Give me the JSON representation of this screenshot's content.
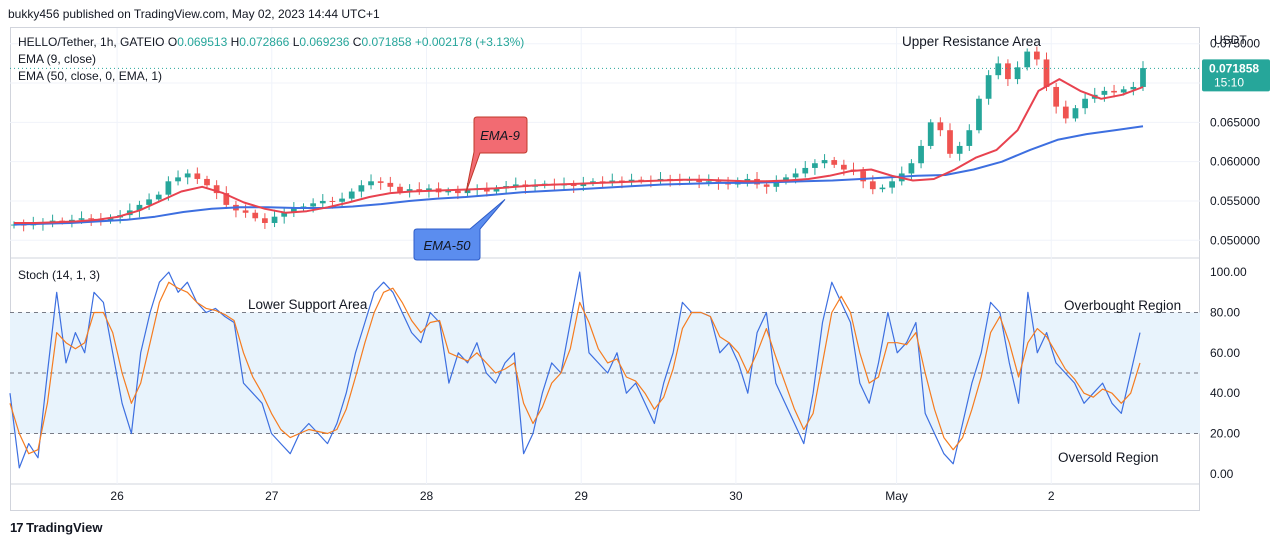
{
  "header": {
    "publisher": "bukky456 published on TradingView.com, May 02, 2023 14:44 UTC+1"
  },
  "legend": {
    "symbol": "HELLO/Tether, 1h, GATEIO",
    "o_label": "O",
    "o_value": "0.069513",
    "h_label": "H",
    "h_value": "0.072866",
    "l_label": "L",
    "l_value": "0.069236",
    "c_label": "C",
    "c_value": "0.071858",
    "change": "+0.002178 (+3.13%)",
    "ema9": "EMA (9, close)",
    "ema50": "EMA (50, close, 0, EMA, 1)",
    "stoch": "Stoch (14, 1, 3)"
  },
  "annotations": {
    "upper_resistance": "Upper Resistance Area",
    "lower_support": "Lower Support Area",
    "overbought": "Overbought Region",
    "oversold": "Oversold Region",
    "ema9_callout": "EMA-9",
    "ema50_callout": "EMA-50"
  },
  "price_axis": {
    "currency": "USDT",
    "last_price": "0.071858",
    "countdown": "15:10"
  },
  "footer": {
    "brand": "TradingView"
  },
  "colors": {
    "up": "#26a69a",
    "down": "#ef5350",
    "ema9": "#e8424f",
    "ema50": "#3d6fe0",
    "stoch_k": "#3d6fe0",
    "stoch_d": "#f57c20",
    "band_fill": "#e8f3fc"
  },
  "chart_data": [
    {
      "type": "candlestick",
      "title": "HELLO/Tether, 1h, GATEIO",
      "y_range": [
        0.048,
        0.077
      ],
      "y_ticks": [
        "0.075000",
        "0.070000",
        "0.065000",
        "0.060000",
        "0.055000",
        "0.050000"
      ],
      "y_tick_values": [
        0.075,
        0.07,
        0.065,
        0.06,
        0.055,
        0.05
      ],
      "x_ticks": [
        "26",
        "27",
        "28",
        "29",
        "30",
        "May",
        "2"
      ],
      "x_tick_positions": [
        0.09,
        0.22,
        0.35,
        0.48,
        0.61,
        0.745,
        0.875
      ],
      "close_series": [
        0.052,
        0.0519,
        0.0521,
        0.0523,
        0.0525,
        0.0524,
        0.0526,
        0.0528,
        0.0527,
        0.0525,
        0.0529,
        0.0532,
        0.0538,
        0.0545,
        0.0552,
        0.0558,
        0.0575,
        0.058,
        0.0585,
        0.0578,
        0.057,
        0.056,
        0.0545,
        0.0538,
        0.0535,
        0.0528,
        0.0522,
        0.053,
        0.0536,
        0.0541,
        0.0543,
        0.0547,
        0.055,
        0.0549,
        0.0553,
        0.0562,
        0.057,
        0.0575,
        0.0573,
        0.0568,
        0.0562,
        0.0565,
        0.0563,
        0.0566,
        0.0561,
        0.0563,
        0.056,
        0.0564,
        0.0566,
        0.0562,
        0.0566,
        0.0569,
        0.0571,
        0.0568,
        0.057,
        0.0572,
        0.057,
        0.0571,
        0.0569,
        0.0573,
        0.0575,
        0.0574,
        0.0576,
        0.0575,
        0.0577,
        0.0576,
        0.0575,
        0.0578,
        0.0577,
        0.0576,
        0.0577,
        0.0574,
        0.0575,
        0.0573,
        0.0571,
        0.0576,
        0.0578,
        0.0571,
        0.0568,
        0.0575,
        0.058,
        0.0585,
        0.0592,
        0.0598,
        0.0602,
        0.0596,
        0.059,
        0.0588,
        0.0575,
        0.0565,
        0.0567,
        0.0575,
        0.0585,
        0.0598,
        0.062,
        0.065,
        0.064,
        0.061,
        0.062,
        0.064,
        0.068,
        0.071,
        0.0725,
        0.0705,
        0.072,
        0.074,
        0.073,
        0.0695,
        0.067,
        0.0655,
        0.0668,
        0.068,
        0.0685,
        0.069,
        0.0688,
        0.0692,
        0.0695,
        0.0719
      ],
      "ema9": [
        0.0522,
        0.0522,
        0.0523,
        0.0524,
        0.0526,
        0.053,
        0.0538,
        0.055,
        0.0562,
        0.0568,
        0.056,
        0.0548,
        0.054,
        0.0535,
        0.0537,
        0.0542,
        0.0548,
        0.0555,
        0.056,
        0.0562,
        0.0563,
        0.0564,
        0.0565,
        0.0566,
        0.0568,
        0.057,
        0.0571,
        0.0572,
        0.0573,
        0.0574,
        0.0575,
        0.0576,
        0.0577,
        0.0577,
        0.0576,
        0.0575,
        0.0575,
        0.0576,
        0.0578,
        0.0582,
        0.0588,
        0.059,
        0.0582,
        0.0576,
        0.0578,
        0.059,
        0.0605,
        0.0615,
        0.064,
        0.069,
        0.0705,
        0.069,
        0.068,
        0.0685,
        0.0695
      ],
      "ema50": [
        0.052,
        0.0521,
        0.0522,
        0.0524,
        0.0526,
        0.053,
        0.0536,
        0.054,
        0.0542,
        0.0542,
        0.0541,
        0.0541,
        0.0543,
        0.0546,
        0.055,
        0.0553,
        0.0555,
        0.0558,
        0.0561,
        0.0563,
        0.0565,
        0.0567,
        0.0569,
        0.0571,
        0.0572,
        0.0573,
        0.0573,
        0.0574,
        0.0575,
        0.0576,
        0.0578,
        0.058,
        0.0582,
        0.0583,
        0.059,
        0.06,
        0.0615,
        0.0628,
        0.0635,
        0.064,
        0.0645
      ],
      "last_price": 0.071858
    },
    {
      "type": "line",
      "title": "Stoch (14, 1, 3)",
      "y_range": [
        -5,
        105
      ],
      "y_ticks": [
        "100.00",
        "80.00",
        "60.00",
        "40.00",
        "20.00",
        "0.00"
      ],
      "y_tick_values": [
        100,
        80,
        60,
        40,
        20,
        0
      ],
      "bands": {
        "upper": 80,
        "middle": 50,
        "lower": 20
      },
      "series": [
        {
          "values": [
            40,
            3,
            15,
            8,
            50,
            90,
            55,
            70,
            60,
            90,
            85,
            60,
            35,
            20,
            60,
            80,
            95,
            100,
            90,
            95,
            85,
            80,
            82,
            78,
            75,
            45,
            40,
            35,
            20,
            15,
            10,
            20,
            25,
            20,
            15,
            25,
            40,
            60,
            75,
            90,
            95,
            90,
            80,
            70,
            65,
            80,
            75,
            45,
            60,
            55,
            65,
            50,
            45,
            55,
            60,
            10,
            20,
            40,
            55,
            50,
            75,
            100,
            60,
            55,
            50,
            60,
            40,
            45,
            35,
            25,
            45,
            60,
            85,
            80,
            80,
            78,
            60,
            65,
            55,
            40,
            70,
            80,
            45,
            35,
            25,
            15,
            40,
            75,
            95,
            85,
            75,
            45,
            35,
            55,
            80,
            60,
            65,
            75,
            30,
            20,
            10,
            5,
            25,
            45,
            60,
            85,
            80,
            55,
            35,
            90,
            60,
            70,
            55,
            50,
            45,
            35,
            40,
            45,
            35,
            30,
            50,
            70
          ]
        },
        {
          "values": [
            35,
            20,
            10,
            12,
            35,
            70,
            65,
            62,
            65,
            80,
            80,
            70,
            50,
            35,
            45,
            65,
            85,
            95,
            92,
            90,
            85,
            82,
            81,
            79,
            76,
            60,
            48,
            40,
            30,
            22,
            18,
            20,
            22,
            21,
            20,
            22,
            32,
            48,
            65,
            80,
            90,
            92,
            85,
            76,
            70,
            75,
            76,
            60,
            58,
            56,
            60,
            55,
            50,
            52,
            55,
            35,
            25,
            33,
            45,
            50,
            62,
            85,
            75,
            62,
            55,
            57,
            48,
            46,
            40,
            32,
            38,
            52,
            72,
            80,
            80,
            78,
            68,
            65,
            60,
            50,
            60,
            72,
            58,
            45,
            32,
            22,
            30,
            55,
            80,
            88,
            80,
            60,
            45,
            48,
            65,
            65,
            64,
            70,
            50,
            32,
            18,
            12,
            18,
            32,
            48,
            70,
            78,
            65,
            48,
            65,
            72,
            68,
            60,
            52,
            47,
            40,
            38,
            42,
            40,
            35,
            40,
            55
          ]
        }
      ]
    }
  ]
}
